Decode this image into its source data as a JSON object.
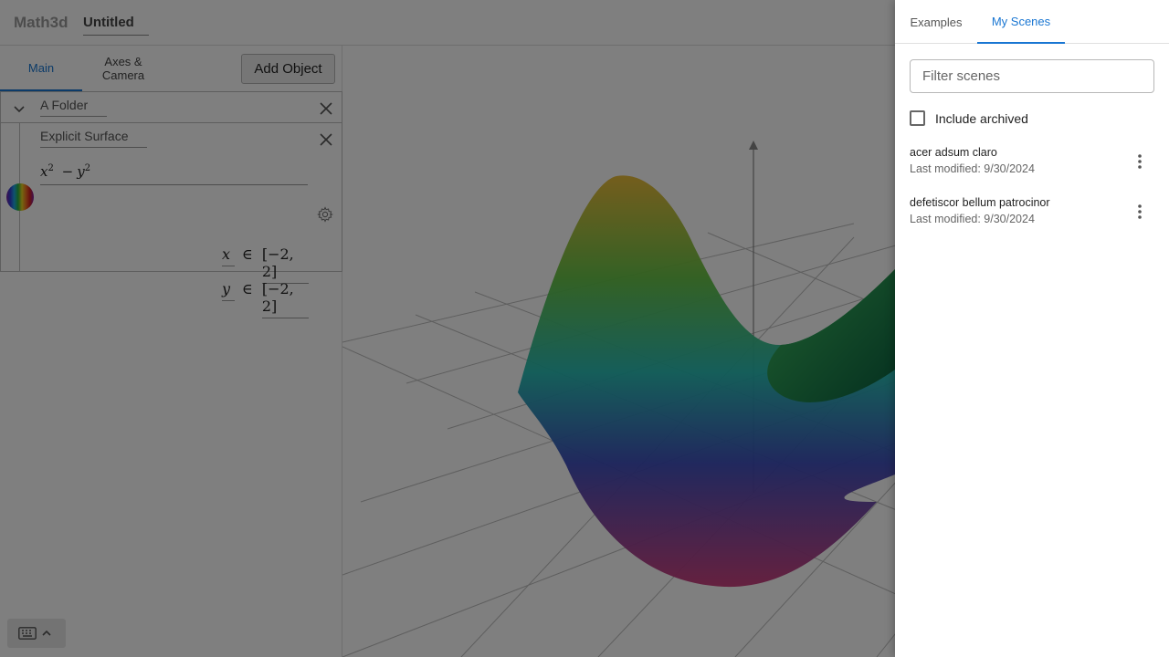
{
  "app": {
    "brand": "Math3d",
    "title": "Untitled"
  },
  "left_panel": {
    "tabs": [
      {
        "label": "Main",
        "active": true
      },
      {
        "label": "Axes &\nCamera",
        "active": false
      }
    ],
    "add_object_label": "Add Object",
    "folder": {
      "name": "A Folder"
    },
    "surface": {
      "name": "Explicit Surface",
      "expression_base1": "x",
      "expression_exp1": "2",
      "expression_op": "−",
      "expression_base2": "y",
      "expression_exp2": "2",
      "ranges": [
        {
          "var": "x",
          "symbol": "∈",
          "value": "[−2, 2]"
        },
        {
          "var": "y",
          "symbol": "∈",
          "value": "[−2, 2]"
        }
      ]
    }
  },
  "drawer": {
    "tabs": [
      {
        "label": "Examples",
        "active": false
      },
      {
        "label": "My Scenes",
        "active": true
      }
    ],
    "filter_placeholder": "Filter scenes",
    "include_archived_label": "Include archived",
    "include_archived_checked": false,
    "scenes": [
      {
        "name": "acer adsum claro",
        "modified": "Last modified: 9/30/2024"
      },
      {
        "name": "defetiscor bellum patrocinor",
        "modified": "Last modified: 9/30/2024"
      }
    ]
  },
  "colors": {
    "accent": "#1976d2",
    "scrim": "rgba(0,0,0,0.5)"
  },
  "icons": [
    "chevron-down-icon",
    "close-icon",
    "gear-icon",
    "chevron-left-icon",
    "keyboard-icon",
    "chevron-up-icon",
    "more-vert-icon"
  ]
}
